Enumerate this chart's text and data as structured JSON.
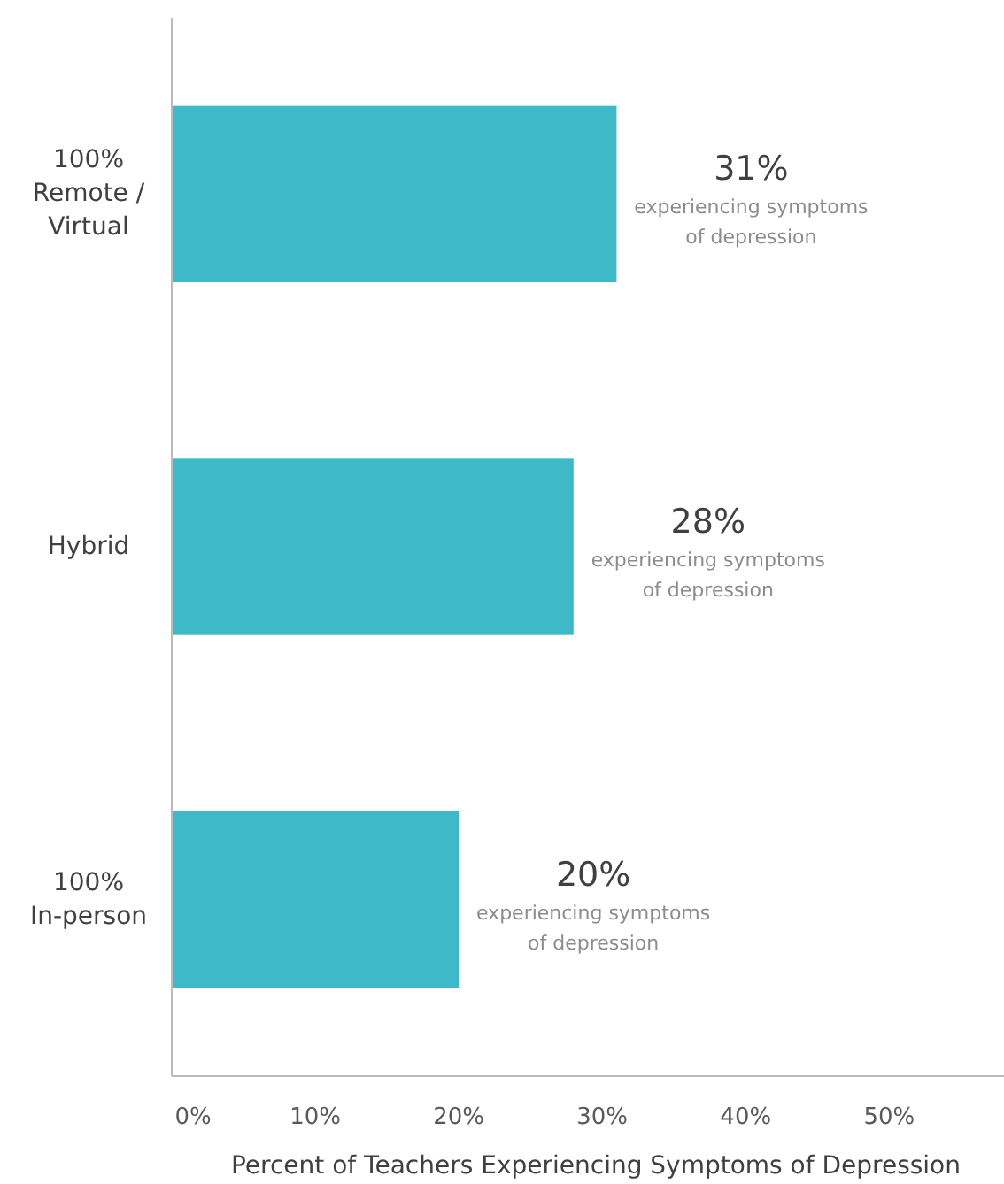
{
  "chart_data": {
    "type": "bar",
    "orientation": "horizontal",
    "xlabel": "Percent of Teachers Experiencing Symptoms of Depression",
    "categories": [
      "100% Remote / Virtual",
      "Hybrid",
      "100% In-person"
    ],
    "values": [
      31,
      28,
      20
    ],
    "color": "#3db9c8",
    "value_labels": [
      "31%",
      "28%",
      "20%"
    ],
    "annotations": [
      {
        "text": "experiencing symptoms of depression",
        "x": 31,
        "y": "100% Remote / Virtual"
      },
      {
        "text": "experiencing symptoms of depression",
        "x": 28,
        "y": "Hybrid"
      },
      {
        "text": "experiencing symptoms of depression",
        "x": 20,
        "y": "100% In-person"
      }
    ],
    "xlim": [
      0,
      58
    ],
    "xticks": [
      {
        "value": 0,
        "label": "0%"
      },
      {
        "value": 10,
        "label": "10%"
      },
      {
        "value": 20,
        "label": "20%"
      },
      {
        "value": 30,
        "label": "30%"
      },
      {
        "value": 40,
        "label": "40%"
      },
      {
        "value": 50,
        "label": "50%"
      }
    ],
    "grid": false
  }
}
